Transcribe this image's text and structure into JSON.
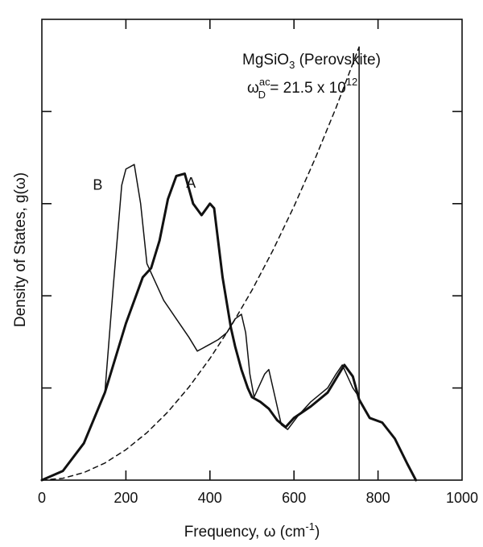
{
  "chart_data": {
    "type": "line",
    "title": "MgSiO",
    "title_sub": "3",
    "title_rest": " (Perovskite)",
    "debye_label": {
      "omega": "ω",
      "sub": "D",
      "sup": "ac",
      "eq": " = 21.5 x 10",
      "exp": "12"
    },
    "xlabel": "Frequency, ω (cm",
    "xlabel_sup": "-1",
    "xlabel_end": ")",
    "ylabel": "Density of States, g(ω)",
    "xlim": [
      0,
      1000
    ],
    "ylim": [
      0,
      1
    ],
    "x_ticks": [
      0,
      200,
      400,
      600,
      800,
      1000
    ],
    "x_tick_labels": [
      "0",
      "200",
      "400",
      "600",
      "800",
      "1000"
    ],
    "y_ticks": [
      0.2,
      0.4,
      0.6,
      0.8
    ],
    "grid": false,
    "cutoff_line": {
      "x": 755,
      "y_top": 0.94
    },
    "series": [
      {
        "name": "A",
        "style": "thick",
        "points": [
          [
            0,
            0
          ],
          [
            50,
            0.02
          ],
          [
            100,
            0.08
          ],
          [
            150,
            0.19
          ],
          [
            200,
            0.34
          ],
          [
            240,
            0.44
          ],
          [
            260,
            0.46
          ],
          [
            280,
            0.52
          ],
          [
            300,
            0.61
          ],
          [
            320,
            0.66
          ],
          [
            340,
            0.665
          ],
          [
            360,
            0.6
          ],
          [
            380,
            0.575
          ],
          [
            400,
            0.6
          ],
          [
            410,
            0.59
          ],
          [
            430,
            0.44
          ],
          [
            450,
            0.33
          ],
          [
            460,
            0.29
          ],
          [
            475,
            0.24
          ],
          [
            490,
            0.2
          ],
          [
            500,
            0.18
          ],
          [
            520,
            0.17
          ],
          [
            540,
            0.155
          ],
          [
            560,
            0.13
          ],
          [
            580,
            0.115
          ],
          [
            600,
            0.135
          ],
          [
            640,
            0.16
          ],
          [
            680,
            0.19
          ],
          [
            700,
            0.22
          ],
          [
            720,
            0.25
          ],
          [
            740,
            0.225
          ],
          [
            755,
            0.175
          ],
          [
            780,
            0.135
          ],
          [
            810,
            0.125
          ],
          [
            840,
            0.09
          ],
          [
            870,
            0.035
          ],
          [
            890,
            0
          ]
        ]
      },
      {
        "name": "B",
        "style": "thin",
        "points": [
          [
            150,
            0.19
          ],
          [
            170,
            0.42
          ],
          [
            190,
            0.64
          ],
          [
            200,
            0.675
          ],
          [
            220,
            0.685
          ],
          [
            235,
            0.6
          ],
          [
            250,
            0.47
          ],
          [
            265,
            0.44
          ],
          [
            290,
            0.39
          ],
          [
            320,
            0.35
          ],
          [
            350,
            0.31
          ],
          [
            370,
            0.28
          ],
          [
            380,
            0.285
          ],
          [
            400,
            0.295
          ],
          [
            420,
            0.305
          ],
          [
            440,
            0.32
          ],
          [
            460,
            0.35
          ],
          [
            475,
            0.36
          ],
          [
            485,
            0.32
          ],
          [
            495,
            0.23
          ],
          [
            505,
            0.18
          ],
          [
            530,
            0.23
          ],
          [
            540,
            0.24
          ],
          [
            555,
            0.18
          ],
          [
            570,
            0.12
          ],
          [
            585,
            0.11
          ],
          [
            610,
            0.14
          ],
          [
            640,
            0.17
          ],
          [
            680,
            0.2
          ],
          [
            700,
            0.23
          ],
          [
            715,
            0.25
          ],
          [
            740,
            0.2
          ],
          [
            755,
            0.18
          ]
        ]
      },
      {
        "name": "",
        "style": "dashed",
        "equation": "debye",
        "points": [
          [
            0,
            0
          ],
          [
            50,
            0.004
          ],
          [
            100,
            0.0165
          ],
          [
            150,
            0.037
          ],
          [
            200,
            0.066
          ],
          [
            250,
            0.103
          ],
          [
            300,
            0.148
          ],
          [
            350,
            0.202
          ],
          [
            400,
            0.264
          ],
          [
            450,
            0.334
          ],
          [
            500,
            0.412
          ],
          [
            550,
            0.499
          ],
          [
            600,
            0.594
          ],
          [
            650,
            0.697
          ],
          [
            700,
            0.808
          ],
          [
            755,
            0.94
          ]
        ]
      }
    ],
    "annotations": [
      {
        "text": "A",
        "x": 355,
        "y": 0.635
      },
      {
        "text": "B",
        "x": 133,
        "y": 0.63
      }
    ]
  }
}
